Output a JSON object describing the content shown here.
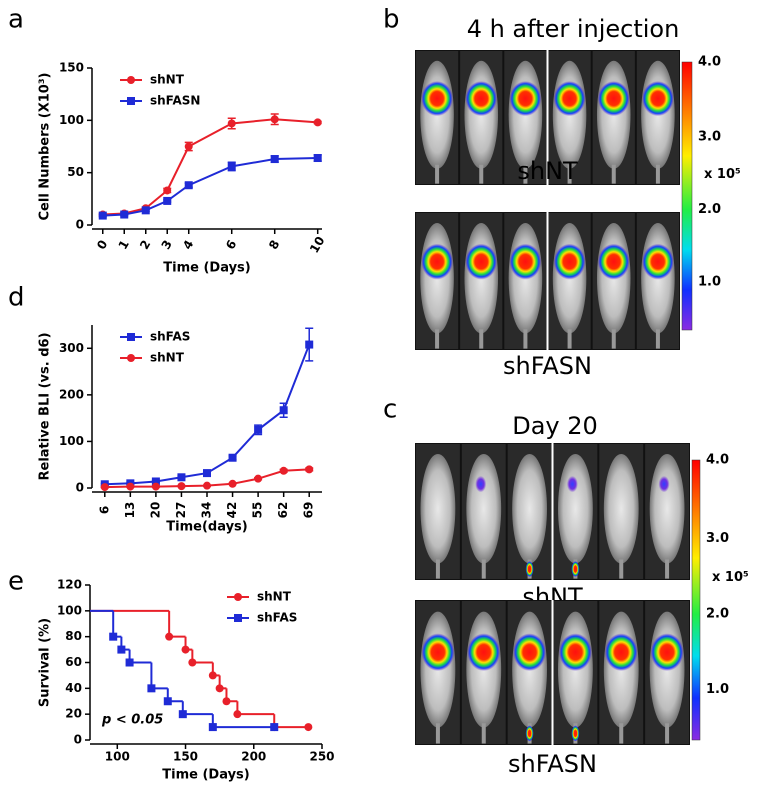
{
  "panel_labels": [
    "a",
    "b",
    "c",
    "d",
    "e"
  ],
  "imaging": [
    {
      "title": "4 h after injection",
      "groups": [
        "shNT",
        "shFASN"
      ],
      "colorbar_labels": [
        "4.0",
        "3.0",
        "2.0",
        "1.0"
      ],
      "colorbar_unit": "x 10⁵"
    },
    {
      "title": "Day 20",
      "groups": [
        "shNT",
        "shFASN"
      ],
      "colorbar_labels": [
        "4.0",
        "3.0",
        "2.0",
        "1.0"
      ],
      "colorbar_unit": "x 10⁵"
    }
  ],
  "chart_data": [
    {
      "type": "line",
      "xlabel": "Time (Days)",
      "ylabel": "Cell Numbers (X10³)",
      "x": [
        0,
        1,
        2,
        3,
        4,
        6,
        8,
        10
      ],
      "xlim": [
        -0.5,
        10.2
      ],
      "xticks": [
        0,
        1,
        2,
        3,
        4,
        6,
        8,
        10
      ],
      "ylim": [
        0,
        150
      ],
      "yticks": [
        0,
        50,
        100,
        150
      ],
      "legend": "top-left",
      "series": [
        {
          "name": "shNT",
          "color": "#e8202a",
          "marker": "circle",
          "values": [
            10,
            11,
            16,
            33,
            75,
            97,
            101,
            98
          ],
          "errors": [
            1,
            1,
            1,
            2,
            4,
            5,
            5,
            1
          ]
        },
        {
          "name": "shFASN",
          "color": "#1f2bd6",
          "marker": "square",
          "values": [
            9,
            10,
            14,
            23,
            38,
            56,
            63,
            64
          ],
          "errors": [
            1,
            1,
            1,
            1,
            2,
            4,
            3,
            3
          ]
        }
      ]
    },
    {
      "type": "line",
      "xlabel": "Time(days)",
      "ylabel": "Relative BLI  (vs. d6)",
      "categories": [
        "6",
        "13",
        "20",
        "27",
        "34",
        "42",
        "55",
        "62",
        "69"
      ],
      "ylim": [
        0,
        350
      ],
      "yticks": [
        0,
        100,
        200,
        300
      ],
      "legend": "top-left",
      "series": [
        {
          "name": "shFAS",
          "color": "#1f2bd6",
          "marker": "square",
          "values": [
            8,
            10,
            14,
            23,
            32,
            65,
            125,
            167,
            308
          ],
          "errors": [
            2,
            2,
            2,
            3,
            3,
            4,
            10,
            15,
            35
          ]
        },
        {
          "name": "shNT",
          "color": "#e8202a",
          "marker": "circle",
          "values": [
            2,
            3,
            3,
            4,
            5,
            9,
            20,
            37,
            40
          ],
          "errors": [
            1,
            1,
            1,
            1,
            1,
            1,
            2,
            3,
            3
          ]
        }
      ]
    },
    {
      "type": "step",
      "xlabel": "Time (Days)",
      "ylabel": "Survival (%)",
      "annotation": "p < 0.05",
      "xlim": [
        80,
        250
      ],
      "xticks": [
        100,
        150,
        200,
        250
      ],
      "ylim": [
        0,
        120
      ],
      "yticks": [
        0,
        20,
        40,
        60,
        80,
        100,
        120
      ],
      "legend": "top-right",
      "series": [
        {
          "name": "shNT",
          "color": "#e8202a",
          "marker": "circle",
          "x": [
            80,
            138,
            150,
            155,
            170,
            175,
            180,
            188,
            215,
            240
          ],
          "values": [
            100,
            80,
            70,
            60,
            50,
            40,
            30,
            20,
            10,
            10
          ]
        },
        {
          "name": "shFAS",
          "color": "#1f2bd6",
          "marker": "square",
          "x": [
            80,
            97,
            103,
            109,
            125,
            137,
            148,
            170,
            215
          ],
          "values": [
            100,
            80,
            70,
            60,
            40,
            30,
            20,
            10,
            10
          ]
        }
      ]
    }
  ]
}
